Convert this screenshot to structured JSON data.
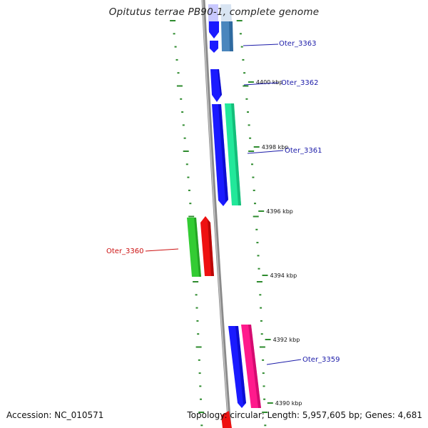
{
  "title": "Opitutus terrae PB90-1, complete genome",
  "footer": {
    "accession": "Accession: NC_010571",
    "summary": "Topology: circular; Length: 5,957,605 bp; Genes: 4,681"
  },
  "colors": {
    "backbone": "#8a8a8a",
    "tick": "#2e8b2e",
    "label_forward": "#1a1aa8",
    "label_reverse": "#cc1111"
  },
  "scale_ticks": [
    {
      "label": "4400 kbp"
    },
    {
      "label": "4398 kbp"
    },
    {
      "label": "4396 kbp"
    },
    {
      "label": "4394 kbp"
    },
    {
      "label": "4392 kbp"
    },
    {
      "label": "4390 kbp"
    }
  ],
  "gene_labels": [
    {
      "label": "Oter_3363",
      "strand": "forward"
    },
    {
      "label": "Oter_3362",
      "strand": "forward"
    },
    {
      "label": "Oter_3361",
      "strand": "forward"
    },
    {
      "label": "Oter_3360",
      "strand": "reverse"
    },
    {
      "label": "Oter_3359",
      "strand": "forward"
    }
  ],
  "features": [
    {
      "name": "gene-arrow",
      "color": "#c8c8ff"
    },
    {
      "name": "gene-arrow",
      "color": "#1a1aff"
    },
    {
      "name": "cds-bar",
      "color": "#d8e4f2"
    },
    {
      "name": "cds-bar",
      "color": "#4a86bd"
    },
    {
      "name": "gene-arrow",
      "color": "#1a1aff"
    },
    {
      "name": "gene-arrow",
      "color": "#1a1aff"
    },
    {
      "name": "gene-arrow",
      "color": "#1a1aff"
    },
    {
      "name": "cds-bar",
      "color": "#22e89a"
    },
    {
      "name": "cds-bar",
      "color": "#33cc33"
    },
    {
      "name": "gene-arrow",
      "color": "#ee1111"
    },
    {
      "name": "gene-arrow",
      "color": "#1a1aff"
    },
    {
      "name": "cds-bar",
      "color": "#ff1a8c"
    },
    {
      "name": "gene-arrow",
      "color": "#ee1111"
    }
  ]
}
